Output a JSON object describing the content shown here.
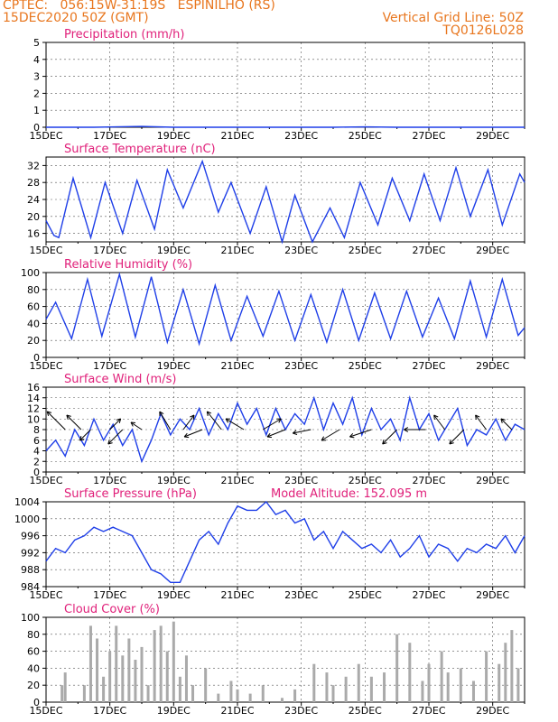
{
  "header": {
    "line1_left": "CPTEC:   056:15W-31:19S   ESPINILHO (RS)",
    "line2_left": "15DEC2020 50Z (GMT)",
    "line2_right": "Vertical Grid Line: 50Z",
    "line3_right": "TQ0126L028"
  },
  "colors": {
    "header": "#e8761e",
    "title": "#e0207a",
    "line": "#1f3fe8",
    "wind_arrow": "#000000",
    "cloud": "#aaaaaa",
    "grid": "#555555"
  },
  "x_tick_labels": [
    "15DEC",
    "17DEC",
    "19DEC",
    "21DEC",
    "23DEC",
    "25DEC",
    "27DEC",
    "29DEC"
  ],
  "chart_data": [
    {
      "type": "line",
      "title": "Precipitation (mm/h)",
      "ylim": [
        0,
        5
      ],
      "yticks": [
        0,
        1,
        2,
        3,
        4,
        5
      ],
      "x_days": [
        0,
        1.5,
        3,
        4,
        5,
        6,
        7,
        8,
        9,
        10,
        11,
        12,
        13,
        14,
        15
      ],
      "values": [
        0,
        0,
        0.05,
        0,
        0,
        0,
        0,
        0,
        0,
        0.02,
        0,
        0,
        0,
        0,
        0
      ]
    },
    {
      "type": "line",
      "title": "Surface Temperature (nC)",
      "ylim": [
        14,
        34
      ],
      "yticks": [
        16,
        20,
        24,
        28,
        32
      ],
      "x_days": [
        0,
        0.25,
        0.4,
        0.85,
        1.4,
        1.85,
        2.4,
        2.85,
        3.4,
        3.8,
        4.3,
        4.9,
        5.4,
        5.8,
        6.4,
        6.9,
        7.4,
        7.8,
        8.35,
        8.9,
        9.35,
        9.85,
        10.4,
        10.85,
        11.4,
        11.85,
        12.35,
        12.85,
        13.3,
        13.85,
        14.3,
        14.85,
        15
      ],
      "values": [
        19,
        15.5,
        15,
        29,
        15,
        28,
        16,
        28.5,
        17,
        31,
        22,
        33,
        21,
        28,
        16,
        27,
        14,
        25,
        14,
        22,
        15,
        28,
        18,
        29,
        19,
        30,
        19,
        31.5,
        20,
        31,
        18,
        30,
        28
      ]
    },
    {
      "type": "line",
      "title": "Relative Humidity (%)",
      "ylim": [
        0,
        100
      ],
      "yticks": [
        0,
        20,
        40,
        60,
        80,
        100
      ],
      "x_days": [
        0,
        0.3,
        0.8,
        1.3,
        1.75,
        2.3,
        2.8,
        3.3,
        3.8,
        4.3,
        4.8,
        5.3,
        5.8,
        6.3,
        6.8,
        7.3,
        7.8,
        8.3,
        8.8,
        9.3,
        9.8,
        10.3,
        10.8,
        11.3,
        11.8,
        12.3,
        12.8,
        13.3,
        13.8,
        14.3,
        14.8,
        15
      ],
      "values": [
        45,
        65,
        22,
        92,
        25,
        98,
        24,
        95,
        18,
        80,
        16,
        85,
        20,
        72,
        25,
        78,
        20,
        74,
        18,
        80,
        20,
        76,
        22,
        78,
        24,
        70,
        22,
        90,
        24,
        92,
        26,
        35
      ]
    },
    {
      "type": "line",
      "title": "Surface Wind (m/s)",
      "ylim": [
        0,
        16
      ],
      "yticks": [
        0,
        2,
        4,
        6,
        8,
        10,
        12,
        14,
        16
      ],
      "x_days": [
        0,
        0.3,
        0.6,
        0.9,
        1.2,
        1.5,
        1.8,
        2.1,
        2.4,
        2.7,
        3,
        3.3,
        3.6,
        3.9,
        4.2,
        4.5,
        4.8,
        5.1,
        5.4,
        5.7,
        6,
        6.3,
        6.6,
        6.9,
        7.2,
        7.5,
        7.8,
        8.1,
        8.4,
        8.7,
        9,
        9.3,
        9.6,
        9.9,
        10.2,
        10.5,
        10.8,
        11.1,
        11.4,
        11.7,
        12,
        12.3,
        12.6,
        12.9,
        13.2,
        13.5,
        13.8,
        14.1,
        14.4,
        14.7,
        15
      ],
      "values": [
        4,
        6,
        3,
        8,
        5,
        10,
        6,
        9,
        5,
        8,
        2,
        6,
        11,
        7,
        10,
        8,
        12,
        7,
        11,
        8,
        13,
        9,
        12,
        7,
        12,
        8,
        11,
        9,
        14,
        8,
        13,
        9,
        14,
        7,
        12,
        8,
        10,
        6,
        14,
        8,
        11,
        6,
        9,
        12,
        5,
        8,
        7,
        10,
        6,
        9,
        8
      ],
      "wind_arrows": [
        {
          "day": 0.6,
          "u": -5,
          "v": 5
        },
        {
          "day": 1.1,
          "u": -4,
          "v": 4
        },
        {
          "day": 1.4,
          "u": -3,
          "v": -3
        },
        {
          "day": 2.0,
          "u": 3,
          "v": 3
        },
        {
          "day": 2.4,
          "u": -4,
          "v": -4
        },
        {
          "day": 3.0,
          "u": -3,
          "v": 2
        },
        {
          "day": 3.9,
          "u": -3,
          "v": 5
        },
        {
          "day": 4.3,
          "u": 3,
          "v": 4
        },
        {
          "day": 4.9,
          "u": -5,
          "v": -2
        },
        {
          "day": 5.5,
          "u": -4,
          "v": 5
        },
        {
          "day": 6.2,
          "u": -5,
          "v": 3
        },
        {
          "day": 6.8,
          "u": 5,
          "v": 3
        },
        {
          "day": 7.5,
          "u": -5,
          "v": -2
        },
        {
          "day": 8.3,
          "u": -5,
          "v": -1
        },
        {
          "day": 9.2,
          "u": -5,
          "v": -3
        },
        {
          "day": 10.2,
          "u": -6,
          "v": -2
        },
        {
          "day": 11.0,
          "u": -4,
          "v": -4
        },
        {
          "day": 11.9,
          "u": -6,
          "v": 0
        },
        {
          "day": 12.5,
          "u": -3,
          "v": 4
        },
        {
          "day": 13.1,
          "u": -4,
          "v": -4
        },
        {
          "day": 13.8,
          "u": -3,
          "v": 4
        },
        {
          "day": 14.6,
          "u": -3,
          "v": 3
        }
      ]
    },
    {
      "type": "line",
      "title": "Surface Pressure (hPa)",
      "subtitle": "Model Altitude: 152.095  m",
      "ylim": [
        984,
        1004
      ],
      "yticks": [
        984,
        988,
        992,
        996,
        1000,
        1004
      ],
      "x_days": [
        0,
        0.3,
        0.6,
        0.9,
        1.2,
        1.5,
        1.8,
        2.1,
        2.4,
        2.7,
        3,
        3.3,
        3.6,
        3.9,
        4.2,
        4.5,
        4.8,
        5.1,
        5.4,
        5.7,
        6,
        6.3,
        6.6,
        6.9,
        7.2,
        7.5,
        7.8,
        8.1,
        8.4,
        8.7,
        9,
        9.3,
        9.6,
        9.9,
        10.2,
        10.5,
        10.8,
        11.1,
        11.4,
        11.7,
        12,
        12.3,
        12.6,
        12.9,
        13.2,
        13.5,
        13.8,
        14.1,
        14.4,
        14.7,
        15
      ],
      "values": [
        990,
        993,
        992,
        995,
        996,
        998,
        997,
        998,
        997,
        996,
        992,
        988,
        987,
        985,
        985,
        990,
        995,
        997,
        994,
        999,
        1003,
        1002,
        1002,
        1004,
        1001,
        1002,
        999,
        1000,
        995,
        997,
        993,
        997,
        995,
        993,
        994,
        992,
        995,
        991,
        993,
        996,
        991,
        994,
        993,
        990,
        993,
        992,
        994,
        993,
        996,
        992,
        996
      ]
    },
    {
      "type": "bar",
      "title": "Cloud Cover (%)",
      "ylim": [
        0,
        100
      ],
      "yticks": [
        0,
        20,
        40,
        60,
        80,
        100
      ],
      "x_days": [
        0.5,
        0.6,
        1.2,
        1.4,
        1.6,
        1.8,
        2.0,
        2.2,
        2.4,
        2.6,
        2.8,
        3.0,
        3.2,
        3.4,
        3.6,
        3.8,
        4.0,
        4.2,
        4.4,
        4.6,
        5.0,
        5.4,
        5.8,
        6.0,
        6.4,
        6.8,
        7.4,
        7.8,
        8.4,
        8.8,
        9.0,
        9.4,
        9.8,
        10.2,
        10.6,
        11.0,
        11.4,
        11.8,
        12.0,
        12.4,
        12.6,
        13.0,
        13.4,
        13.8,
        14.2,
        14.4,
        14.6,
        14.8
      ],
      "values": [
        20,
        35,
        20,
        90,
        75,
        30,
        60,
        90,
        55,
        75,
        50,
        65,
        20,
        85,
        90,
        60,
        95,
        30,
        55,
        20,
        40,
        10,
        25,
        15,
        10,
        20,
        5,
        15,
        45,
        35,
        20,
        30,
        45,
        30,
        35,
        80,
        70,
        25,
        45,
        60,
        35,
        40,
        25,
        60,
        45,
        70,
        85,
        40
      ]
    }
  ]
}
